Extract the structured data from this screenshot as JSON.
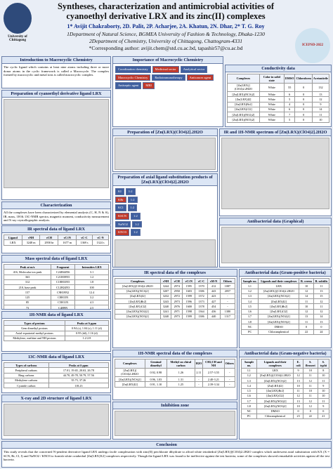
{
  "header": {
    "title": "Syntheses, characterization and antimicrobial activities of cyanoethyl derivative LRX and its zinc(II) complexes",
    "authors": "1* Avijit Chakraborty, 2D. Palit, 2P. Acharjee, 2A. Khatun, 2N. Dhar, 2* T. G. Roy",
    "affiliation1": "1Department of Natural Science, BGMEA University of Fashion & Technology, Dhaka-1230",
    "affiliation2": "2Department of Chemistry, University of Chittagong, Chattogram-4331",
    "email": "*Corresponding author: avijit.chem@std.cu.ac.bd, tapashir57@cu.ac.bd",
    "left_logo": "University of Chittagong",
    "right_logo": "ICEPSD-2022"
  },
  "panels": [
    {
      "title": "Introduction to Macrocyclic Chemistry",
      "text": "The cyclic ligand which contains at least nine atoms including three or more donor atoms in the cyclic framework is called a Macrocycle. The complex formed by macrocyclic and metal ions is called macrocyclic complex."
    },
    {
      "title": "Preparation of cyanoethyl derivative ligand LRX"
    },
    {
      "title": "Characterization",
      "text": "All the complexes have been characterized by elemental analysis (C, H, N & S), IR, mass, 1H & 13C-NMR spectra, magnetic moment, conductivity measurement and X-ray crystallographic analysis."
    },
    {
      "title": "IR spectral data of ligand LRX",
      "table": {
        "header": [
          "Ligand",
          "νNH",
          "νCH",
          "νC≡N",
          "νC-C",
          "νC-N"
        ],
        "rows": [
          [
            "LRX",
            "3248 m",
            "2958 br",
            "1677 m",
            "1369 s",
            "1324 s"
          ]
        ]
      }
    },
    {
      "title": "Mass spectral data of ligand LRX",
      "table": {
        "header": [
          "Peak at m/z",
          "Fragment",
          "Intensities LRX"
        ],
        "rows": [
          [
            "416, Molecular ion peak",
            "C24H44N6",
            "3.1"
          ],
          [
            "363",
            "C21H39N5",
            "1.2"
          ],
          [
            "312",
            "C18H33N5",
            "1.8"
          ],
          [
            "210, base peak",
            "C12H24N3",
            "100"
          ],
          [
            "157",
            "C9H19N2",
            "12.4"
          ],
          [
            "125",
            "C8H15N",
            "3.2"
          ],
          [
            "85",
            "C5H11N",
            "4.3"
          ],
          [
            "73",
            "C4H9N",
            "2.5"
          ],
          [
            "57",
            "C3H7N",
            "1.9"
          ]
        ]
      }
    },
    {
      "title": "1H-NMR data of ligand LRX",
      "table": {
        "header": [
          "Types of protons",
          "Peaks at δ ppm"
        ],
        "rows": [
          [
            "Gem dimethyl protons",
            "0.94 (s), 1.04 (s), 1.11 (d)"
          ],
          [
            "Axial-equatorial methyl protons",
            "0.95 (dd), 1.16 (d)"
          ],
          [
            "Methylene, methine and NH protons",
            "1.2-2.8"
          ]
        ]
      }
    },
    {
      "title": "13C-NMR data of ligand LRX",
      "table": {
        "header": [
          "Types of carbons",
          "Peaks at δ ppm"
        ],
        "rows": [
          [
            "Peripheral carbons",
            "17.01, 19.65, 20.63, 26.78"
          ],
          [
            "Ring carbons",
            "44.70, 49.78, 50.79, 57.56"
          ],
          [
            "Methylene carbons",
            "35.73, 37.26"
          ],
          [
            "Cyanide carbon",
            "118.23"
          ]
        ]
      }
    },
    {
      "title": "X-ray and 2D structure of ligand LRX"
    },
    {
      "title": "Importance of Macrocyclic Chemistry",
      "items": [
        "Coordination chemistry",
        "Medicinal sector",
        "Analytical sector",
        "Macrocyclic Chemistry",
        "Radioimmunotherapy",
        "Anticancer agent",
        "Antiseptic agent",
        "MRI"
      ]
    },
    {
      "title": "Preparation of [Zn(LRX)(ClO4)2].2H2O"
    },
    {
      "title": "Preparation of axial ligand substitution products of [Zn(LRX)(ClO4)2].2H2O",
      "items": [
        "KI",
        "KBr",
        "KCl",
        "KSCN",
        "NaNO2",
        "KNO3"
      ],
      "ratio": "1:2"
    },
    {
      "title": "IR spectral data of the complexes",
      "table": {
        "header": [
          "Complexes",
          "νNH",
          "νCH",
          "νC≡N",
          "νC-C",
          "νM-N",
          "Others"
        ],
        "rows": [
          [
            "[Zn(LRX)](ClO4)2.2H2O",
            "3244",
            "2974",
            "1595",
            "1370",
            "412",
            "1087"
          ],
          [
            "[Zn(LRX)(NCS)2]",
            "3207",
            "2950",
            "1603",
            "1386",
            "443",
            "2057"
          ],
          [
            "[Zn(LRX)I2]",
            "3232",
            "2972",
            "1599",
            "1372",
            "423",
            "-"
          ],
          [
            "[Zn(LRX)Br2]",
            "3243",
            "2973",
            "1596",
            "1373",
            "427",
            "-"
          ],
          [
            "[Zn(LRX)Cl2]",
            "3240",
            "2976",
            "1600",
            "1378",
            "454",
            "-"
          ],
          [
            "[Zn(LRX)(NO2)2]",
            "3241",
            "2971",
            "1598",
            "1364",
            "436",
            "1380"
          ],
          [
            "[Zn(LRX)(NO3)2]",
            "3240",
            "2973",
            "1599",
            "1386",
            "440",
            "1317"
          ]
        ]
      }
    },
    {
      "title": "1H-NMR spectral data of the complexes",
      "table": {
        "header": [
          "Complexes",
          "Geminal dimethyl",
          "Methyl on chiral carbon",
          "H2O",
          "CH2,CH and NH",
          "Others"
        ],
        "rows": [
          [
            "[Zn(LRX)](ClO4)2.2H2O",
            "0.92, 0.98",
            "1.26",
            "2.11",
            "2.57-3.55",
            "-"
          ],
          [
            "[Zn(LRX)(NCS)2]",
            "0.96, 1.03",
            "1.31",
            "-",
            "2.40-3.21",
            "-"
          ],
          [
            "[Zn(LRX)I2]",
            "0.91, 1.10",
            "1.25",
            "-",
            "2.39-3.34",
            "-"
          ]
        ]
      }
    },
    {
      "title": "Inhibition zone"
    },
    {
      "title": "Conductivity data",
      "table": {
        "header": [
          "Complexes",
          "Color in solid state",
          "DMSO",
          "Chloroform",
          "Acetonitrile"
        ],
        "rows": [
          [
            "[Zn(LRX)](ClO4)2.2H2O",
            "White",
            "55",
            "0",
            "132"
          ],
          [
            "[Zn(LRX)(NCS)2]",
            "White",
            "6",
            "0",
            "13"
          ],
          [
            "[Zn(LRX)I2]",
            "White",
            "5",
            "0",
            "12"
          ],
          [
            "[Zn(LRX)Br2]",
            "White",
            "4",
            "0",
            "9"
          ],
          [
            "[Zn(LRX)Cl2]",
            "White",
            "6",
            "0",
            "14"
          ],
          [
            "[Zn(LRX)(NO2)2]",
            "White",
            "7",
            "0",
            "11"
          ],
          [
            "[Zn(LRX)(NO3)2]",
            "White",
            "5",
            "0",
            "10"
          ]
        ]
      }
    },
    {
      "title": "IR and 1H-NMR spectrum of [Zn(LRX)(ClO4)2].2H2O"
    },
    {
      "title": "Antibacterial data (Graphical)"
    },
    {
      "title": "Antibacterial data (Gram-positive bacteria)",
      "table": {
        "header": [
          "Sample no.",
          "Ligands and their complexes",
          "B. cereus",
          "B. subtilis"
        ],
        "rows": [
          [
            "L1",
            "LRX",
            "10",
            "11"
          ],
          [
            "L2",
            "[Zn(LRX)](ClO4)2.2H2O",
            "12",
            "13"
          ],
          [
            "L3",
            "[Zn(LRX)(NCS)2]",
            "14",
            "15"
          ],
          [
            "L4",
            "[Zn(LRX)I2]",
            "11",
            "12"
          ],
          [
            "L5",
            "[Zn(LRX)Br2]",
            "10",
            "11"
          ],
          [
            "L6",
            "[Zn(LRX)Cl2]",
            "12",
            "12"
          ],
          [
            "L7",
            "[Zn(LRX)(NO2)2]",
            "13",
            "14"
          ],
          [
            "L8",
            "[Zn(LRX)(NO3)2]",
            "11",
            "13"
          ],
          [
            "NC",
            "DMSO",
            "0",
            "0"
          ],
          [
            "PC",
            "Chloramphenicol",
            "22",
            "24"
          ]
        ]
      }
    },
    {
      "title": "Antibacterial data (Gram-negative bacteria)",
      "table": {
        "header": [
          "Sample no.",
          "Ligands and their complexes",
          "E. coli",
          "S. flexneri",
          "S. typhi"
        ],
        "rows": [
          [
            "L1",
            "LRX",
            "9",
            "10",
            "8"
          ],
          [
            "L2",
            "[Zn(LRX)](ClO4)2.2H2O",
            "12",
            "11",
            "10"
          ],
          [
            "L3",
            "[Zn(LRX)(NCS)2]",
            "13",
            "12",
            "11"
          ],
          [
            "L4",
            "[Zn(LRX)I2]",
            "10",
            "11",
            "9"
          ],
          [
            "L5",
            "[Zn(LRX)Br2]",
            "11",
            "10",
            "10"
          ],
          [
            "L6",
            "[Zn(LRX)Cl2]",
            "12",
            "11",
            "10"
          ],
          [
            "L7",
            "[Zn(LRX)(NO2)2]",
            "13",
            "12",
            "11"
          ],
          [
            "L8",
            "[Zn(LRX)(NO3)2]",
            "10",
            "12",
            "9"
          ],
          [
            "NC",
            "DMSO",
            "0",
            "0",
            "0"
          ],
          [
            "PC",
            "Chloramphenicol",
            "23",
            "22",
            "21"
          ]
        ]
      }
    },
    {
      "title": "Conclusion",
      "text": "This study reveals that the concerned N-pendent derivative ligand LRX undergo facile complexation with zinc(II) perchlorate dihydrate to afford white tetrahedral [Zn(LRX)](ClO4)2.2H2O complex which underwent axial substitution with KX (X = SCN, Br, Cl, I) and NaNO2 / KNO3 to furnish white octahedral [Zn(LRX)X2] complexes respectively. Though the ligand LRX was found to be ineffective against the test bacteria, some of the complexes showed remarkable activities against all the test bacteria."
    }
  ]
}
